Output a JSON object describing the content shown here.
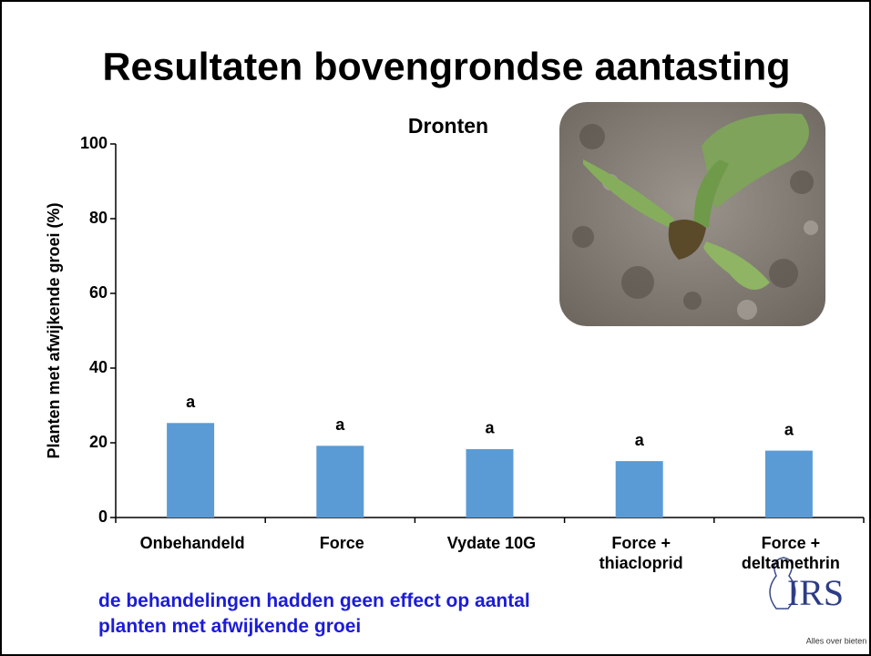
{
  "header": {
    "title": "Resultaten bovengrondse aantasting"
  },
  "chart_data": {
    "type": "bar",
    "title": "Dronten",
    "y_label": "Planten met afwijkende groei (%)",
    "categories": [
      "Onbehandeld",
      "Force",
      "Vydate 10G",
      "Force +\nthiacloprid",
      "Force +\ndeltamethrin"
    ],
    "values": [
      25.3,
      19.2,
      18.3,
      15.1,
      17.9
    ],
    "annotations": [
      "a",
      "a",
      "a",
      "a",
      "a"
    ],
    "color": "#5b9bd5",
    "ylim": [
      0,
      100
    ],
    "yticks": [
      0,
      20,
      40,
      60,
      80,
      100
    ],
    "grid": false
  },
  "footer": {
    "note": "de behandelingen hadden geen effect op aantal\nplanten met afwijkende groei",
    "logo": "IRS",
    "tagline": "Alles over bieten"
  }
}
